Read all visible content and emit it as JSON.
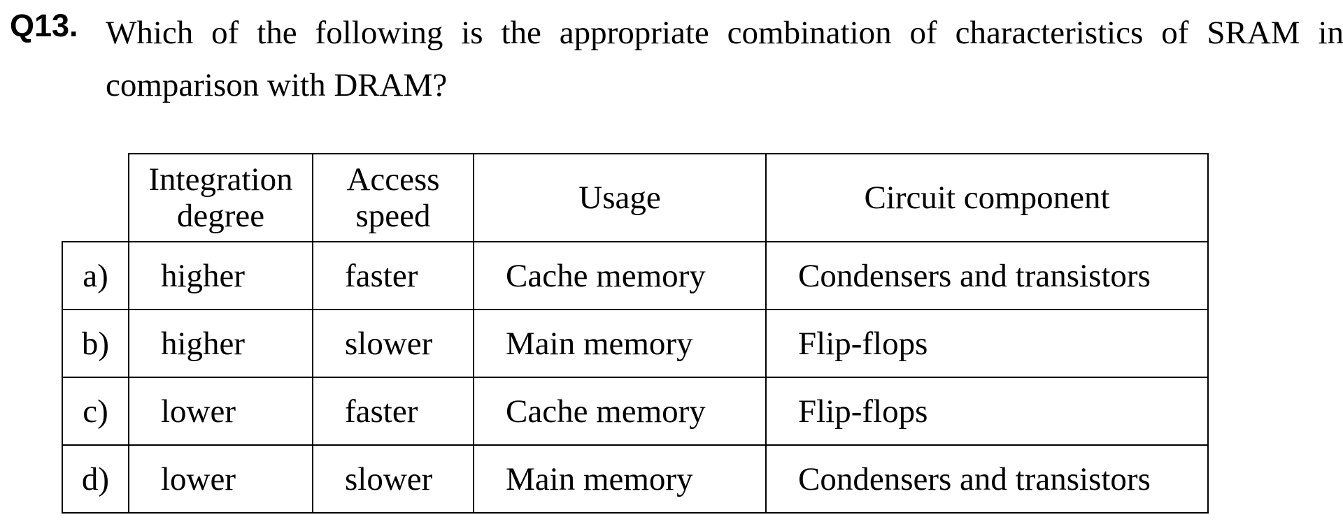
{
  "question": {
    "number": "Q13.",
    "text": "Which of the following is the appropriate combination of characteristics of SRAM in comparison with DRAM?"
  },
  "table": {
    "headers": {
      "integration": "Integration degree",
      "access": "Access speed",
      "usage": "Usage",
      "circuit": "Circuit component"
    },
    "rows": [
      {
        "option": "a)",
        "integration": "higher",
        "access": "faster",
        "usage": "Cache memory",
        "circuit": "Condensers and transistors"
      },
      {
        "option": "b)",
        "integration": "higher",
        "access": "slower",
        "usage": "Main memory",
        "circuit": "Flip-flops"
      },
      {
        "option": "c)",
        "integration": "lower",
        "access": "faster",
        "usage": "Cache memory",
        "circuit": "Flip-flops"
      },
      {
        "option": "d)",
        "integration": "lower",
        "access": "slower",
        "usage": "Main memory",
        "circuit": "Condensers and transistors"
      }
    ]
  }
}
